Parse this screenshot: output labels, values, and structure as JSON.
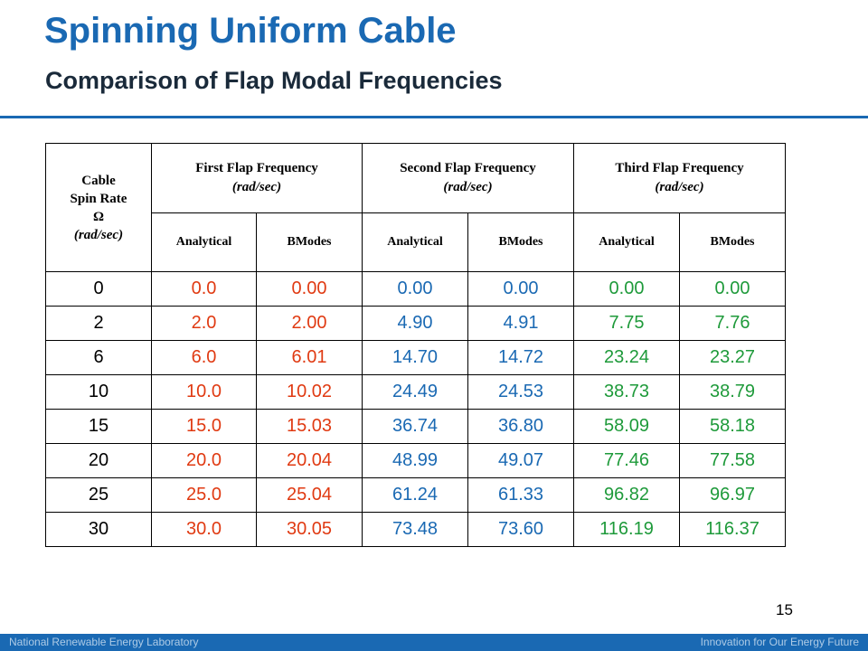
{
  "slide": {
    "title": "Spinning Uniform Cable",
    "subtitle": "Comparison of Flap Modal Frequencies",
    "page_number": "15"
  },
  "table": {
    "spin_header": {
      "line1": "Cable",
      "line2": "Spin Rate",
      "line3": "Ω",
      "line4": "(rad/sec)"
    },
    "groups": [
      {
        "line1": "First Flap Frequency",
        "line2": "(rad/sec)"
      },
      {
        "line1": "Second Flap Frequency",
        "line2": "(rad/sec)"
      },
      {
        "line1": "Third Flap Frequency",
        "line2": "(rad/sec)"
      }
    ],
    "subheaders": [
      "Analytical",
      "BModes",
      "Analytical",
      "BModes",
      "Analytical",
      "BModes"
    ],
    "column_colors": [
      "#000000",
      "#e03a12",
      "#e03a12",
      "#1a69b3",
      "#1a69b3",
      "#1e9a3a",
      "#1e9a3a"
    ],
    "rows": [
      [
        "0",
        "0.0",
        "0.00",
        "0.00",
        "0.00",
        "0.00",
        "0.00"
      ],
      [
        "2",
        "2.0",
        "2.00",
        "4.90",
        "4.91",
        "7.75",
        "7.76"
      ],
      [
        "6",
        "6.0",
        "6.01",
        "14.70",
        "14.72",
        "23.24",
        "23.27"
      ],
      [
        "10",
        "10.0",
        "10.02",
        "24.49",
        "24.53",
        "38.73",
        "38.79"
      ],
      [
        "15",
        "15.0",
        "15.03",
        "36.74",
        "36.80",
        "58.09",
        "58.18"
      ],
      [
        "20",
        "20.0",
        "20.04",
        "48.99",
        "49.07",
        "77.46",
        "77.58"
      ],
      [
        "25",
        "25.0",
        "25.04",
        "61.24",
        "61.33",
        "96.82",
        "96.97"
      ],
      [
        "30",
        "30.0",
        "30.05",
        "73.48",
        "73.60",
        "116.19",
        "116.37"
      ]
    ]
  },
  "footer": {
    "left": "National Renewable Energy Laboratory",
    "right": "Innovation for Our Energy Future"
  },
  "colors": {
    "brand_blue": "#1a69b3",
    "bmodes_red": "#e03a12",
    "second_blue": "#1a69b3",
    "third_green": "#1e9a3a"
  }
}
